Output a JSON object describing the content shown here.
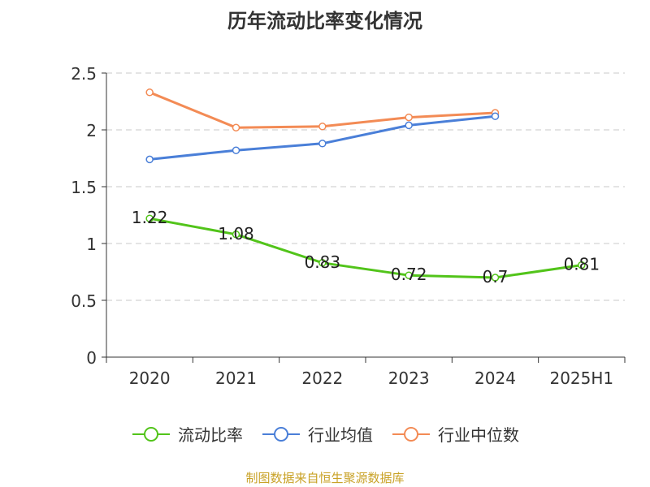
{
  "title": "历年流动比率变化情况",
  "source": "制图数据来自恒生聚源数据库",
  "colors": {
    "current_ratio": "#52c41a",
    "industry_avg": "#4a7fd8",
    "industry_median": "#f38b55"
  },
  "chart_data": {
    "type": "line",
    "title": "历年流动比率变化情况",
    "categories": [
      "2020",
      "2021",
      "2022",
      "2023",
      "2024",
      "2025H1"
    ],
    "ylim": [
      0,
      2.5
    ],
    "yticks": [
      "0",
      "0.5",
      "1",
      "1.5",
      "2",
      "2.5"
    ],
    "grid": true,
    "legend_position": "bottom",
    "series": [
      {
        "name": "流动比率",
        "values": [
          1.22,
          1.08,
          0.83,
          0.72,
          0.7,
          0.81
        ],
        "labels": [
          "1.22",
          "1.08",
          "0.83",
          "0.72",
          "0.7",
          "0.81"
        ]
      },
      {
        "name": "行业均值",
        "values": [
          1.74,
          1.82,
          1.88,
          2.04,
          2.12,
          null
        ]
      },
      {
        "name": "行业中位数",
        "values": [
          2.33,
          2.02,
          2.03,
          2.11,
          2.15,
          null
        ]
      }
    ]
  }
}
